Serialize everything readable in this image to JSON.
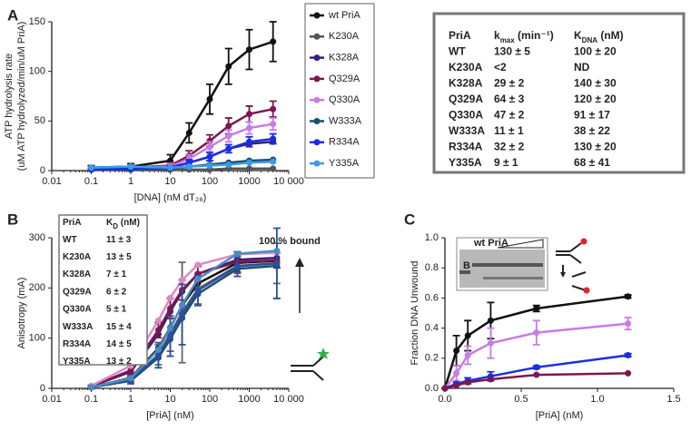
{
  "chart_data": [
    {
      "type": "line",
      "panel_label": "A",
      "x_label": "[DNA] (nM dT₂₈)",
      "y_label": [
        "ATP hydrolysis rate",
        "(uM ATP hydrolyzed/min/uM PriA)"
      ],
      "xscale": "log",
      "xlim": [
        0.01,
        10000
      ],
      "xticks": [
        0.01,
        0.1,
        1,
        10,
        100,
        1000,
        {
          "value": 10000,
          "label": "10 000"
        }
      ],
      "ylim": [
        0,
        150
      ],
      "yticks": [
        0,
        50,
        100,
        150
      ],
      "legend": "outside-right",
      "x": [
        0.1,
        1,
        10,
        30,
        100,
        300,
        1000,
        4000
      ],
      "series": [
        {
          "name": "wt PriA",
          "color": "#111111",
          "values": [
            3,
            4,
            10,
            38,
            72,
            105,
            122,
            130
          ],
          "errors": [
            2,
            3,
            6,
            10,
            15,
            18,
            20,
            20
          ]
        },
        {
          "name": "K230A",
          "color": "#555555",
          "values": [
            1,
            1,
            1,
            1,
            1,
            2,
            2,
            2
          ]
        },
        {
          "name": "K328A",
          "color": "#3b1f7a",
          "values": [
            1,
            2,
            3,
            8,
            14,
            22,
            27,
            29
          ]
        },
        {
          "name": "Q329A",
          "color": "#7b1850",
          "values": [
            2,
            3,
            5,
            15,
            30,
            45,
            57,
            62
          ],
          "errors": [
            1,
            2,
            3,
            5,
            6,
            8,
            8,
            8
          ]
        },
        {
          "name": "Q330A",
          "color": "#c77ce6",
          "values": [
            2,
            3,
            4,
            12,
            24,
            35,
            43,
            47
          ],
          "errors": [
            1,
            2,
            3,
            4,
            5,
            6,
            6,
            6
          ]
        },
        {
          "name": "W333A",
          "color": "#1b4f6b",
          "values": [
            1,
            1,
            2,
            4,
            6,
            8,
            10,
            11
          ]
        },
        {
          "name": "R334A",
          "color": "#1a2ee0",
          "values": [
            1,
            2,
            3,
            8,
            14,
            22,
            29,
            32
          ],
          "errors": [
            1,
            1,
            2,
            3,
            4,
            4,
            5,
            5
          ]
        },
        {
          "name": "Y335A",
          "color": "#3a9be8",
          "values": [
            3,
            4,
            3,
            4,
            5,
            6,
            8,
            9
          ]
        }
      ],
      "table": {
        "header": [
          [
            "PriA"
          ],
          [
            "k",
            "max",
            " (min⁻¹)"
          ],
          [
            "K",
            "DNA",
            " (nM)"
          ]
        ],
        "rows": [
          [
            "WT",
            "130 ± 5",
            "100 ± 20"
          ],
          [
            "K230A",
            "<2",
            "ND"
          ],
          [
            "K328A",
            "29 ± 2",
            "140 ± 30"
          ],
          [
            "Q329A",
            "64 ± 3",
            "120 ± 20"
          ],
          [
            "Q330A",
            "47 ± 2",
            "91 ± 17"
          ],
          [
            "W333A",
            "11 ± 1",
            "38 ± 22"
          ],
          [
            "R334A",
            "32 ± 2",
            "130 ± 20"
          ],
          [
            "Y335A",
            "9 ± 1",
            "68 ± 41"
          ]
        ]
      }
    },
    {
      "type": "line",
      "panel_label": "B",
      "x_label": "[PriA] (nM)",
      "y_label": [
        "Anisotropy (mA)"
      ],
      "annotation": "100 % bound",
      "xscale": "log",
      "xlim": [
        0.01,
        10000
      ],
      "xticks": [
        0.01,
        0.1,
        1,
        10,
        100,
        1000,
        {
          "value": 10000,
          "label": "10 000"
        }
      ],
      "ylim": [
        0,
        300
      ],
      "yticks": [
        0,
        100,
        200,
        300
      ],
      "x": [
        0.1,
        1,
        5,
        10,
        20,
        50,
        500,
        5000
      ],
      "series": [
        {
          "color": "#111111",
          "values": [
            2,
            21,
            80,
            121,
            165,
            209,
            250,
            254
          ]
        },
        {
          "color": "#666666",
          "values": [
            2,
            18,
            67,
            109,
            151,
            198,
            244,
            249
          ],
          "errors": [
            3,
            5,
            20,
            35,
            100,
            30,
            15,
            40
          ]
        },
        {
          "color": "#3b1f7a",
          "values": [
            4,
            33,
            108,
            153,
            193,
            228,
            256,
            260
          ]
        },
        {
          "color": "#7b1850",
          "values": [
            4,
            36,
            116,
            159,
            196,
            228,
            252,
            255
          ],
          "errors": [
            2,
            8,
            15,
            20,
            20,
            15,
            20,
            15
          ]
        },
        {
          "color": "#d98ac8",
          "values": [
            5,
            45,
            135,
            180,
            216,
            246,
            267,
            270
          ]
        },
        {
          "color": "#1b4f6b",
          "values": [
            2,
            15,
            61,
            98,
            140,
            188,
            238,
            244
          ]
        },
        {
          "color": "#2a4ea0",
          "values": [
            2,
            17,
            66,
            104,
            147,
            195,
            243,
            249
          ],
          "errors": [
            3,
            8,
            25,
            40,
            60,
            30,
            20,
            70
          ]
        },
        {
          "color": "#4a8cc0",
          "values": [
            2,
            20,
            77,
            120,
            166,
            218,
            268,
            274
          ]
        }
      ],
      "table": {
        "header": [
          [
            "PriA"
          ],
          [
            "K",
            "D",
            " (nM)"
          ]
        ],
        "rows": [
          [
            "WT",
            "11 ± 3"
          ],
          [
            "K230A",
            "13 ± 5"
          ],
          [
            "K328A",
            "7 ± 1"
          ],
          [
            "Q329A",
            "6 ± 2"
          ],
          [
            "Q330A",
            "5 ± 1"
          ],
          [
            "W333A",
            "15 ± 4"
          ],
          [
            "R334A",
            "14 ± 5"
          ],
          [
            "Y335A",
            "13 ± 2"
          ]
        ]
      }
    },
    {
      "type": "line",
      "panel_label": "C",
      "x_label": "[PriA] (nM)",
      "y_label": [
        "Fraction DNA Unwound"
      ],
      "inset_labels": [
        "B",
        "wt PriA"
      ],
      "xscale": "linear",
      "xlim": [
        0,
        1.5
      ],
      "xticks": [
        {
          "value": 0,
          "label": "0.0"
        },
        0.5,
        {
          "value": 1,
          "label": "1.0"
        },
        1.5
      ],
      "ylim": [
        0,
        1
      ],
      "yticks": [
        {
          "value": 0,
          "label": "0.0"
        },
        0.2,
        0.4,
        0.6,
        0.8,
        {
          "value": 1,
          "label": "1.0"
        }
      ],
      "x": [
        0,
        0.075,
        0.15,
        0.3,
        0.6,
        1.2
      ],
      "series": [
        {
          "color": "#111111",
          "values": [
            0,
            0.25,
            0.35,
            0.45,
            0.53,
            0.61
          ],
          "errors": [
            0,
            0.1,
            0.1,
            0.12,
            0.02,
            0.01
          ]
        },
        {
          "color": "#c77ce6",
          "values": [
            0,
            0.1,
            0.22,
            0.3,
            0.37,
            0.43
          ],
          "errors": [
            0,
            0.05,
            0.06,
            0.1,
            0.08,
            0.04
          ]
        },
        {
          "color": "#1a2ee0",
          "values": [
            0,
            0.03,
            0.05,
            0.08,
            0.14,
            0.22
          ],
          "errors": [
            0,
            0.01,
            0.02,
            0.03,
            0.01,
            0.01
          ]
        },
        {
          "color": "#7b1850",
          "values": [
            0,
            0.02,
            0.04,
            0.06,
            0.09,
            0.1
          ]
        }
      ]
    }
  ]
}
